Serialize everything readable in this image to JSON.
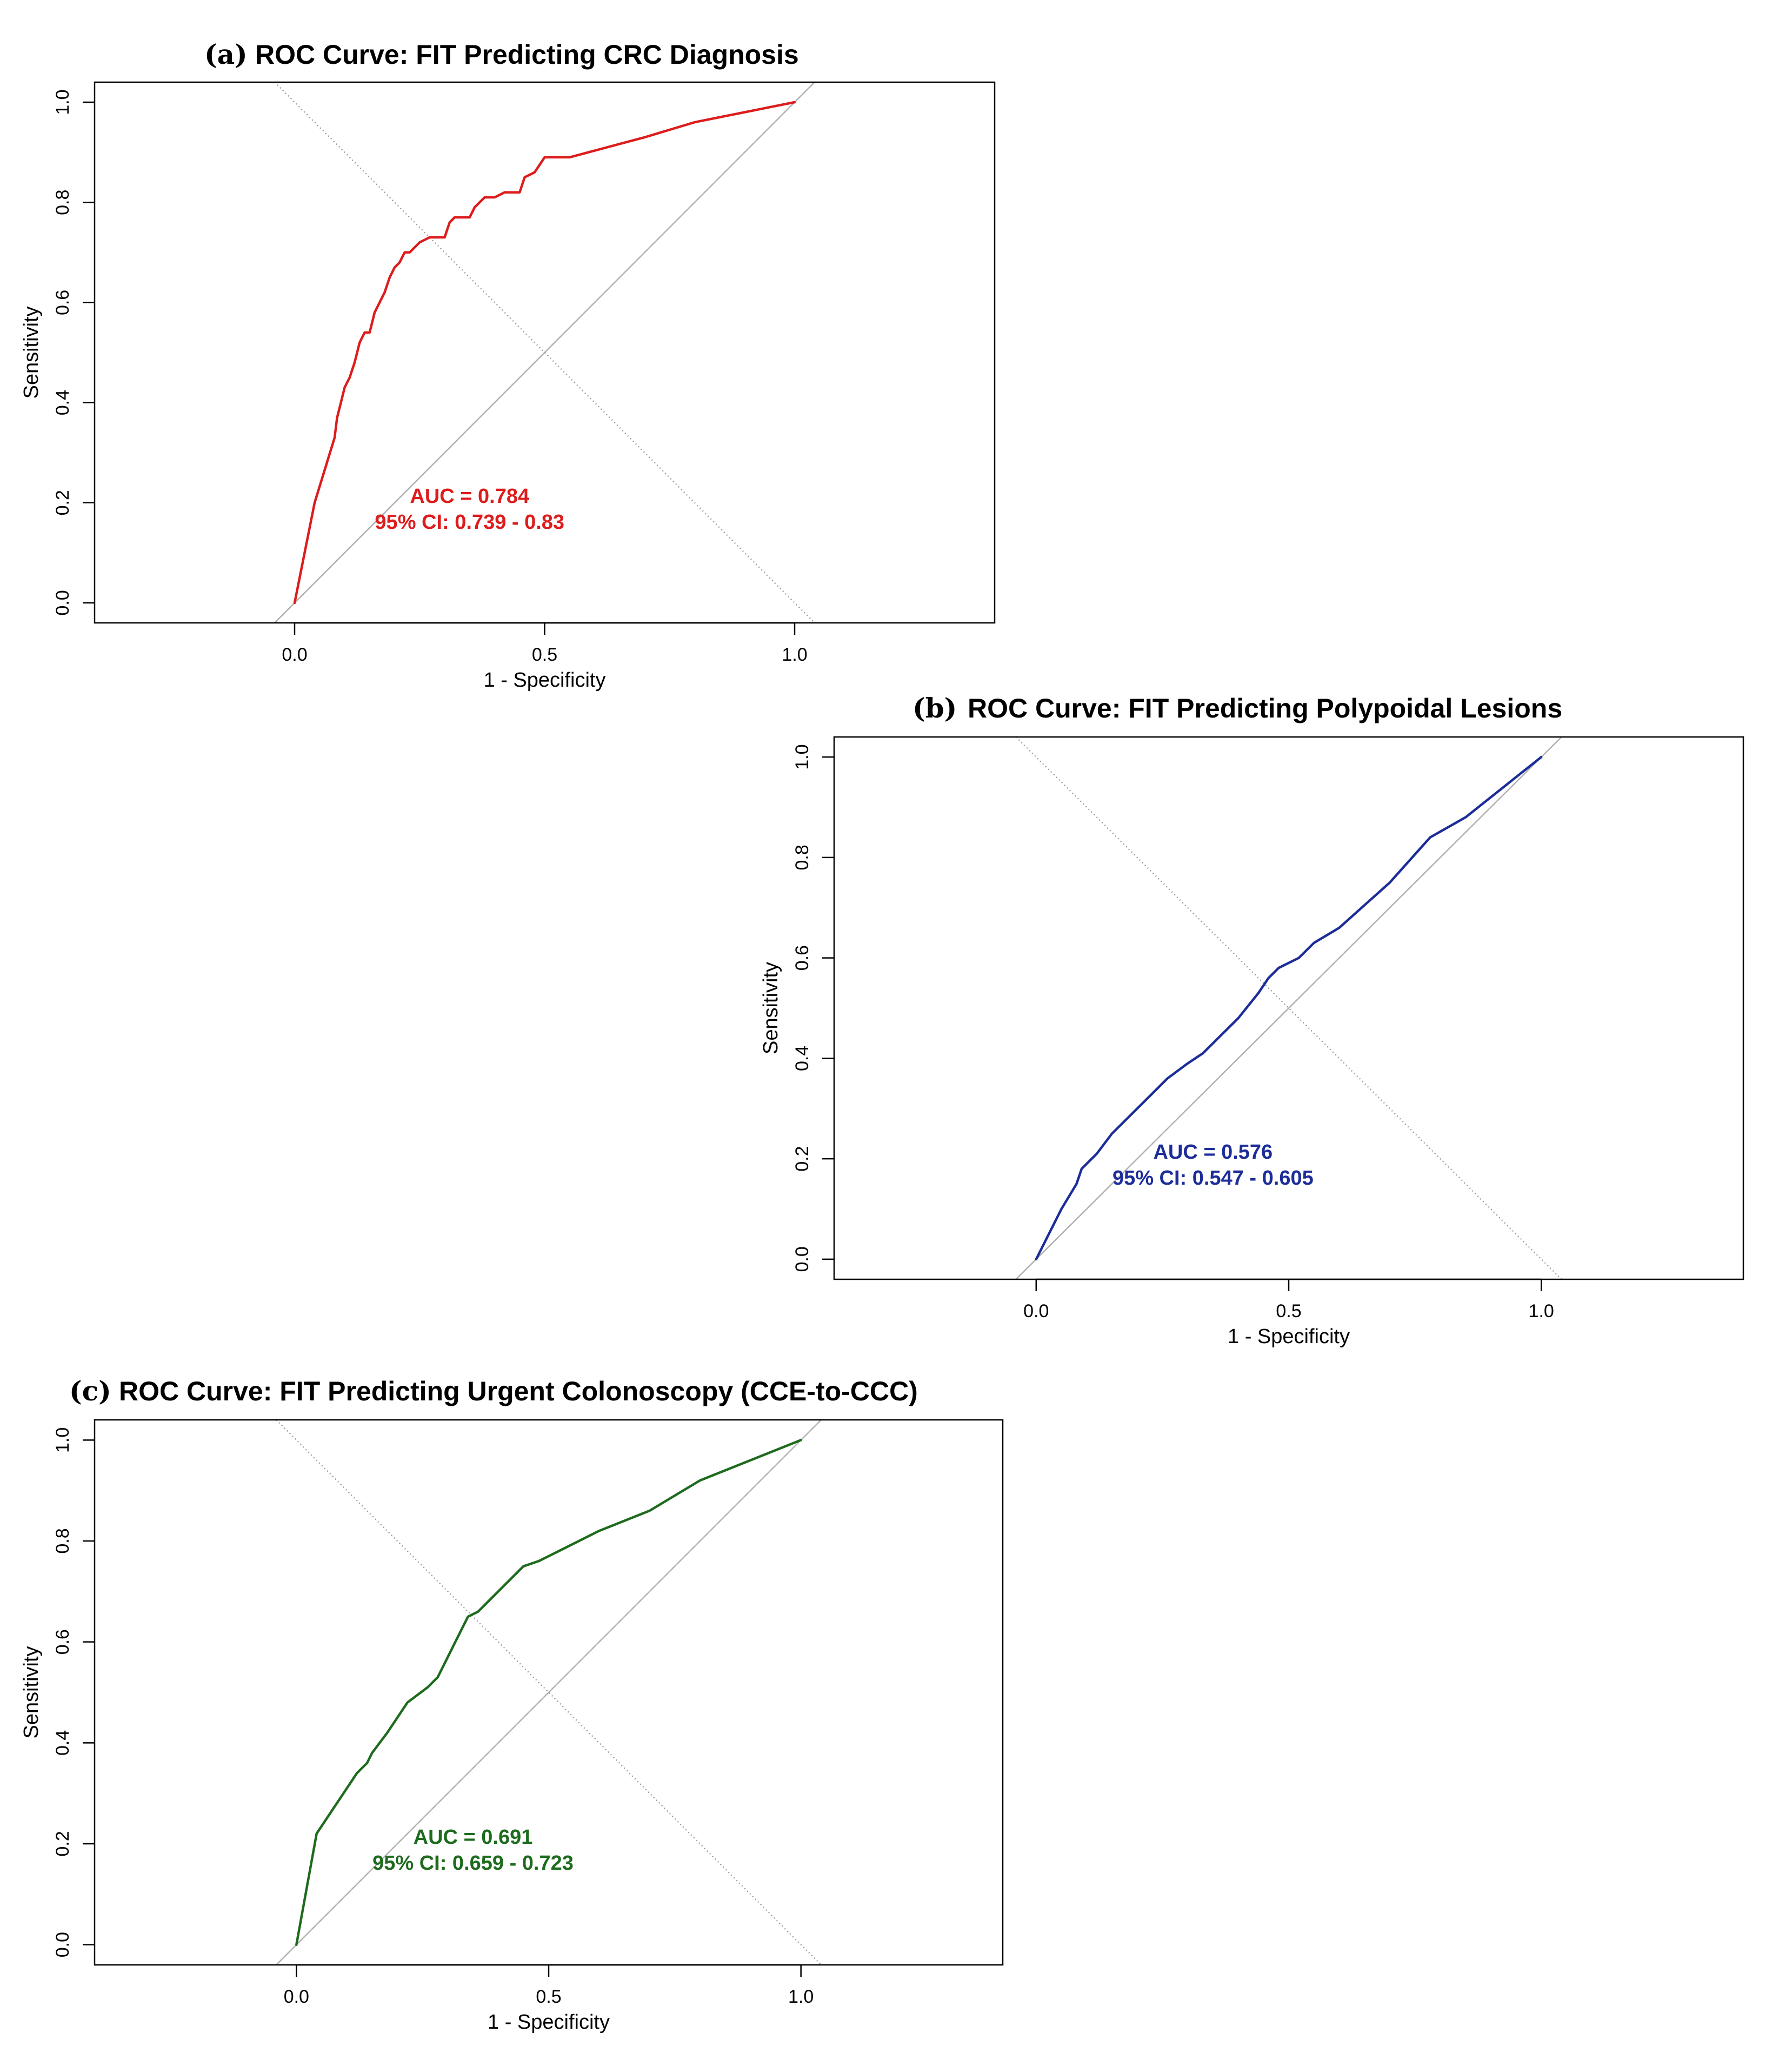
{
  "figure": {
    "background": "#ffffff",
    "frame_color": "#000000",
    "reference_line_color": "#b0b0b0",
    "crossing_line_color": "#9a9a9a"
  },
  "chart_data": [
    {
      "id": "a",
      "type": "line",
      "panel_letter": "(a)",
      "title": "ROC Curve: FIT Predicting CRC Diagnosis",
      "xlabel": "1 - Specificity",
      "ylabel": "Sensitivity",
      "xlim": [
        -0.4,
        1.4
      ],
      "ylim": [
        -0.04,
        1.04
      ],
      "xticks": [
        0.0,
        0.5,
        1.0
      ],
      "xtick_labels": [
        "0.0",
        "0.5",
        "1.0"
      ],
      "yticks": [
        0.0,
        0.2,
        0.4,
        0.6,
        0.8,
        1.0
      ],
      "ytick_labels": [
        "0.0",
        "0.2",
        "0.4",
        "0.6",
        "0.8",
        "1.0"
      ],
      "grid": false,
      "color": "#dd1c1c",
      "annotation": [
        "AUC = 0.784",
        "95% CI: 0.739 - 0.83"
      ],
      "annotation_anchor": [
        0.35,
        0.2
      ],
      "series": [
        {
          "x": [
            0,
            0.04,
            0.08,
            0.085,
            0.09,
            0.1,
            0.11,
            0.12,
            0.13,
            0.14,
            0.15,
            0.16,
            0.18,
            0.19,
            0.2,
            0.21,
            0.22,
            0.23,
            0.25,
            0.27,
            0.3,
            0.31,
            0.32,
            0.35,
            0.36,
            0.37,
            0.38,
            0.4,
            0.42,
            0.45,
            0.46,
            0.48,
            0.5,
            0.55,
            0.7,
            0.8,
            1.0
          ],
          "y": [
            0,
            0.2,
            0.33,
            0.37,
            0.39,
            0.43,
            0.45,
            0.48,
            0.52,
            0.54,
            0.54,
            0.58,
            0.62,
            0.65,
            0.67,
            0.68,
            0.7,
            0.7,
            0.72,
            0.73,
            0.73,
            0.76,
            0.77,
            0.77,
            0.79,
            0.8,
            0.81,
            0.81,
            0.82,
            0.82,
            0.85,
            0.86,
            0.89,
            0.89,
            0.93,
            0.96,
            1.0
          ]
        }
      ],
      "reference_lines": [
        "diagonal",
        "anti-diagonal"
      ]
    },
    {
      "id": "b",
      "type": "line",
      "panel_letter": "(b)",
      "title": "ROC Curve: FIT Predicting Polypoidal Lesions",
      "xlabel": "1 - Specificity",
      "ylabel": "Sensitivity",
      "xlim": [
        -0.4,
        1.4
      ],
      "ylim": [
        -0.04,
        1.04
      ],
      "xticks": [
        0.0,
        0.5,
        1.0
      ],
      "xtick_labels": [
        "0.0",
        "0.5",
        "1.0"
      ],
      "yticks": [
        0.0,
        0.2,
        0.4,
        0.6,
        0.8,
        1.0
      ],
      "ytick_labels": [
        "0.0",
        "0.2",
        "0.4",
        "0.6",
        "0.8",
        "1.0"
      ],
      "grid": false,
      "color": "#1c2d99",
      "annotation": [
        "AUC = 0.576",
        "95% CI: 0.547 - 0.605"
      ],
      "annotation_anchor": [
        0.35,
        0.2
      ],
      "series": [
        {
          "x": [
            0,
            0.05,
            0.08,
            0.09,
            0.1,
            0.12,
            0.15,
            0.18,
            0.22,
            0.26,
            0.3,
            0.33,
            0.36,
            0.4,
            0.44,
            0.46,
            0.48,
            0.5,
            0.52,
            0.55,
            0.6,
            0.7,
            0.78,
            0.85,
            1.0
          ],
          "y": [
            0,
            0.1,
            0.15,
            0.18,
            0.19,
            0.21,
            0.25,
            0.28,
            0.32,
            0.36,
            0.39,
            0.41,
            0.44,
            0.48,
            0.53,
            0.56,
            0.58,
            0.59,
            0.6,
            0.63,
            0.66,
            0.75,
            0.84,
            0.88,
            1.0
          ]
        }
      ],
      "reference_lines": [
        "diagonal",
        "anti-diagonal"
      ]
    },
    {
      "id": "c",
      "type": "line",
      "panel_letter": "(c)",
      "title": "ROC Curve: FIT Predicting Urgent Colonoscopy (CCE-to-CCC)",
      "xlabel": "1 - Specificity",
      "ylabel": "Sensitivity",
      "xlim": [
        -0.4,
        1.4
      ],
      "ylim": [
        -0.04,
        1.04
      ],
      "xticks": [
        0.0,
        0.5,
        1.0
      ],
      "xtick_labels": [
        "0.0",
        "0.5",
        "1.0"
      ],
      "yticks": [
        0.0,
        0.2,
        0.4,
        0.6,
        0.8,
        1.0
      ],
      "ytick_labels": [
        "0.0",
        "0.2",
        "0.4",
        "0.6",
        "0.8",
        "1.0"
      ],
      "grid": false,
      "color": "#1e6b1e",
      "annotation": [
        "AUC = 0.691",
        "95% CI: 0.659 - 0.723"
      ],
      "annotation_anchor": [
        0.35,
        0.2
      ],
      "series": [
        {
          "x": [
            0,
            0.04,
            0.06,
            0.08,
            0.1,
            0.12,
            0.14,
            0.15,
            0.18,
            0.2,
            0.22,
            0.26,
            0.28,
            0.3,
            0.32,
            0.34,
            0.36,
            0.38,
            0.4,
            0.42,
            0.45,
            0.48,
            0.5,
            0.52,
            0.6,
            0.7,
            0.8,
            1.0
          ],
          "y": [
            0,
            0.22,
            0.25,
            0.28,
            0.31,
            0.34,
            0.36,
            0.38,
            0.42,
            0.45,
            0.48,
            0.51,
            0.53,
            0.57,
            0.61,
            0.65,
            0.66,
            0.68,
            0.7,
            0.72,
            0.75,
            0.76,
            0.77,
            0.78,
            0.82,
            0.86,
            0.92,
            1.0
          ]
        }
      ],
      "reference_lines": [
        "diagonal",
        "anti-diagonal"
      ]
    }
  ]
}
